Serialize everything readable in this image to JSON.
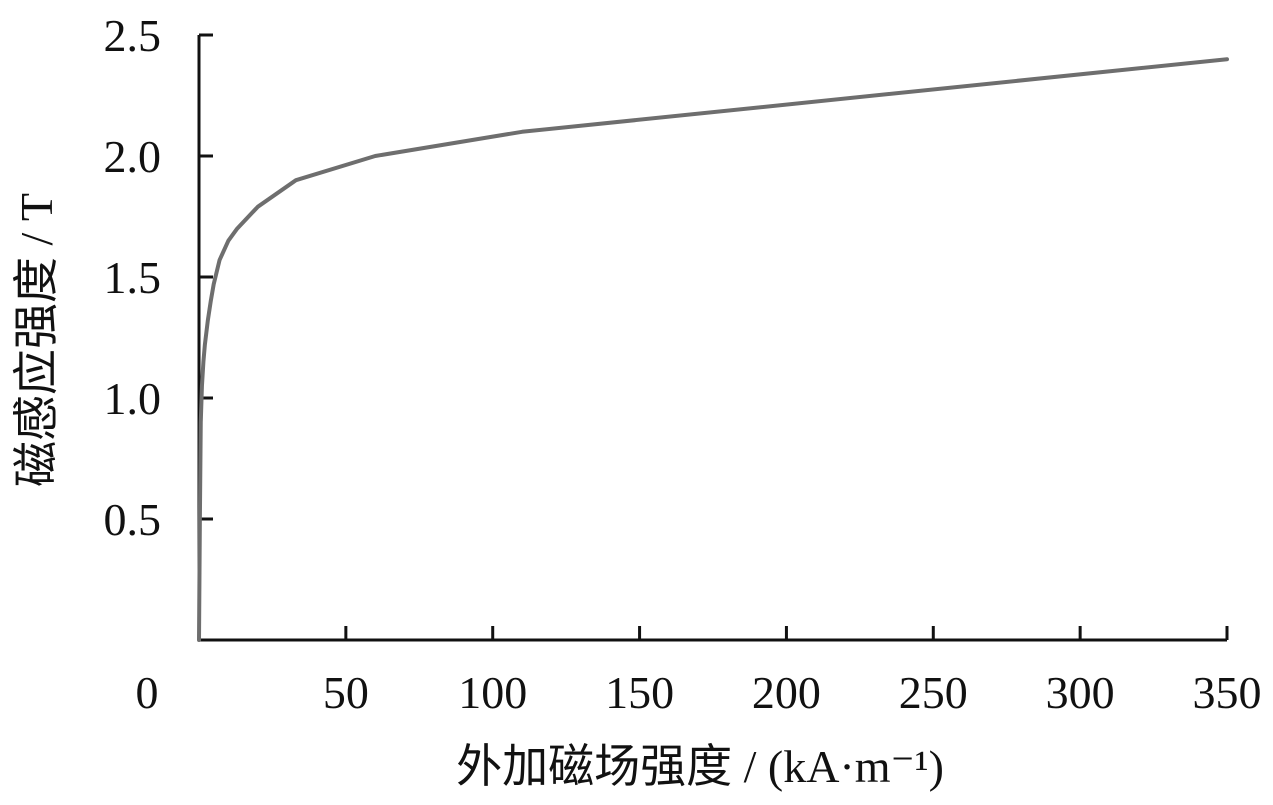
{
  "chart_data": {
    "type": "line",
    "xlabel": "外加磁场强度 / (kA·m⁻¹)",
    "ylabel": "磁感应强度 / T",
    "xlim": [
      0,
      350
    ],
    "ylim": [
      0,
      2.5
    ],
    "x_ticks": [
      0,
      50,
      100,
      150,
      200,
      250,
      300,
      350
    ],
    "x_tick_labels": [
      "0",
      "50",
      "100",
      "150",
      "200",
      "250",
      "300",
      "350"
    ],
    "y_ticks": [
      0.5,
      1.0,
      1.5,
      2.0,
      2.5
    ],
    "y_tick_labels": [
      "0.5",
      "1.0",
      "1.5",
      "2.0",
      "2.5"
    ],
    "grid": false,
    "colors": {
      "line": "#6e6e6e",
      "axis": "#111111"
    },
    "series": [
      {
        "x": [
          0,
          0.3,
          0.6,
          1,
          1.5,
          2,
          3,
          4,
          5,
          7,
          10,
          13,
          20,
          33,
          60,
          110,
          350
        ],
        "y": [
          0,
          0.5,
          0.9,
          1.05,
          1.15,
          1.22,
          1.32,
          1.4,
          1.47,
          1.57,
          1.65,
          1.7,
          1.79,
          1.9,
          2.0,
          2.1,
          2.4
        ]
      }
    ]
  }
}
